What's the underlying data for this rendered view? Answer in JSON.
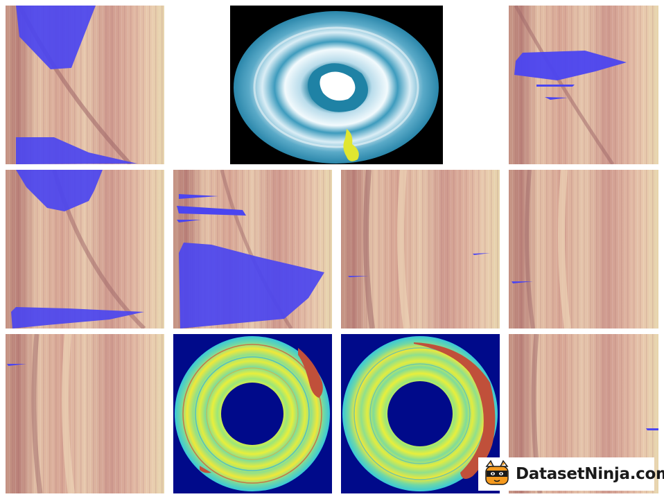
{
  "colors": {
    "wood_light": "#e9c9b0",
    "wood_mid": "#d8a898",
    "wood_dark": "#b97a7a",
    "wood_edge": "#e6d2aa",
    "mask_blue": "#4b45f0",
    "disk_yellow": "#e0e630",
    "mask_red": "#c0503a",
    "scan_navy": "#000a8a",
    "agate_blue": "#2e8fb0"
  },
  "brand": {
    "logo_icon": "ninja-cat-icon",
    "text": "DatasetNinja.com"
  }
}
